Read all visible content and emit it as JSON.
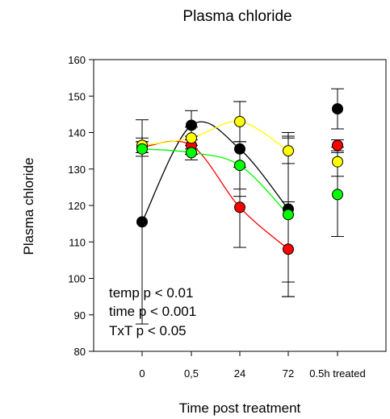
{
  "chart_data": {
    "type": "line",
    "title": "Plasma chloride",
    "xlabel": "Time post treatment",
    "ylabel": "Plasma chloride",
    "ylim": [
      80,
      160
    ],
    "yticks": [
      80,
      90,
      100,
      110,
      120,
      130,
      140,
      150,
      160
    ],
    "categories": [
      "0",
      "0,5",
      "24",
      "72",
      "0.5h treated"
    ],
    "grid": false,
    "annotations": [
      "temp p < 0.01",
      "time p < 0.001",
      "TxT p < 0.05"
    ],
    "series": [
      {
        "color": "#000000",
        "values": [
          115.5,
          142.0,
          135.5,
          119.0,
          146.5
        ],
        "errors": [
          28.0,
          4.0,
          13.0,
          20.0,
          5.5
        ]
      },
      {
        "color": "#ff0000",
        "values": [
          136.0,
          136.5,
          119.5,
          108.0,
          136.5
        ],
        "errors": [
          1.5,
          2.5,
          11.0,
          13.0,
          1.5
        ]
      },
      {
        "color": "#ffff00",
        "values": [
          136.5,
          138.5,
          143.0,
          135.0,
          132.0
        ],
        "errors": [
          2.0,
          3.0,
          5.5,
          3.5,
          4.0
        ]
      },
      {
        "color": "#00ff00",
        "values": [
          135.5,
          134.5,
          131.0,
          117.5,
          123.0
        ],
        "errors": [
          2.0,
          2.0,
          6.5,
          22.5,
          11.5
        ]
      }
    ]
  }
}
